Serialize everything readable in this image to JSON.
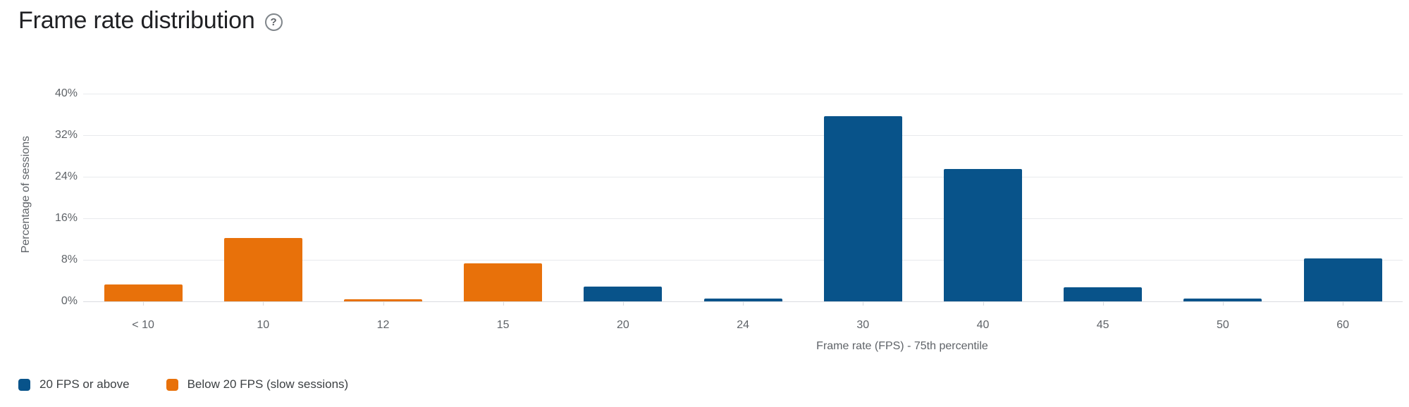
{
  "header": {
    "title": "Frame rate distribution",
    "help_icon": "?"
  },
  "chart_data": {
    "type": "bar",
    "title": "Frame rate distribution",
    "categories": [
      "< 10",
      "10",
      "12",
      "15",
      "20",
      "24",
      "30",
      "40",
      "45",
      "50",
      "60"
    ],
    "values": [
      3.3,
      12.2,
      0.4,
      7.3,
      2.9,
      0.5,
      35.7,
      25.5,
      2.7,
      0.5,
      8.3
    ],
    "series_membership": [
      "below",
      "below",
      "below",
      "below",
      "above",
      "above",
      "above",
      "above",
      "above",
      "above",
      "above"
    ],
    "series": [
      {
        "name": "20 FPS or above",
        "key": "above",
        "color": "#08538A"
      },
      {
        "name": "Below 20 FPS (slow sessions)",
        "key": "below",
        "color": "#E8710A"
      }
    ],
    "xlabel": "Frame rate (FPS) - 75th percentile",
    "ylabel": "Percentage of sessions",
    "y_ticks": [
      "0%",
      "8%",
      "16%",
      "24%",
      "32%",
      "40%"
    ],
    "y_tick_values": [
      0,
      8,
      16,
      24,
      32,
      40
    ],
    "ylim": [
      0,
      40
    ],
    "grid": true,
    "legend_position": "bottom-left"
  },
  "legend": {
    "items": [
      {
        "label": "20 FPS or above",
        "color": "#08538A"
      },
      {
        "label": "Below 20 FPS (slow sessions)",
        "color": "#E8710A"
      }
    ]
  }
}
